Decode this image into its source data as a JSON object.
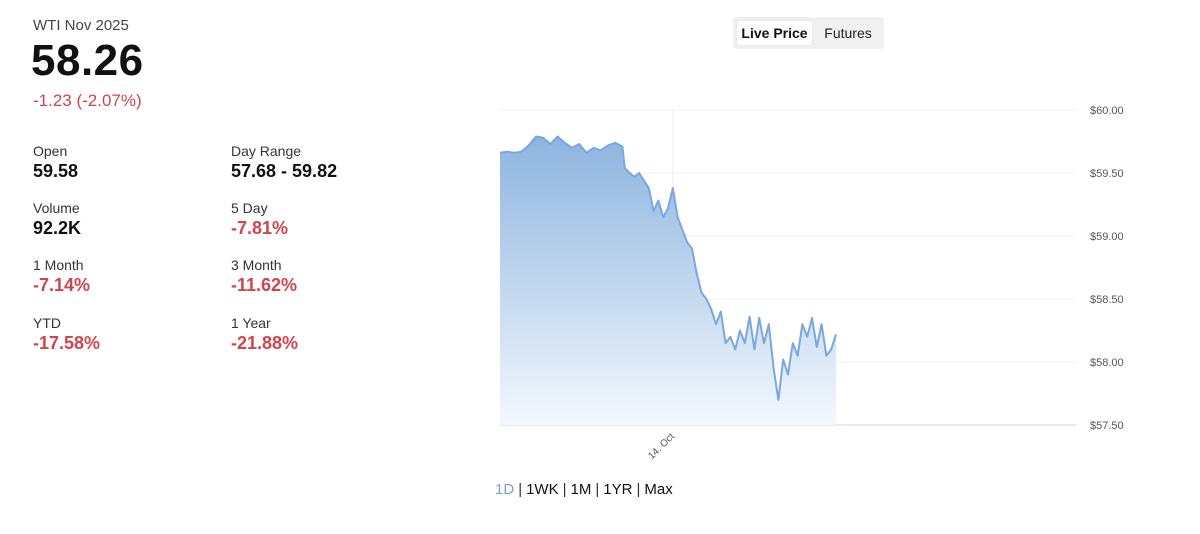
{
  "header": {
    "instrument": "WTI Nov 2025",
    "price": "58.26",
    "change": "-1.23 (-2.07%)"
  },
  "stats": [
    {
      "label": "Open",
      "value": "59.58",
      "negative": false
    },
    {
      "label": "Day Range",
      "value": "57.68 - 59.82",
      "negative": false
    },
    {
      "label": "Volume",
      "value": "92.2K",
      "negative": false
    },
    {
      "label": "5 Day",
      "value": "-7.81%",
      "negative": true
    },
    {
      "label": "1 Month",
      "value": "-7.14%",
      "negative": true
    },
    {
      "label": "3 Month",
      "value": "-11.62%",
      "negative": true
    },
    {
      "label": "YTD",
      "value": "-17.58%",
      "negative": true
    },
    {
      "label": "1 Year",
      "value": "-21.88%",
      "negative": true
    }
  ],
  "toggle": {
    "live_label": "Live Price",
    "futures_label": "Futures",
    "active": "live"
  },
  "ranges": [
    {
      "label": "1D",
      "active": true
    },
    {
      "label": "1WK",
      "active": false
    },
    {
      "label": "1M",
      "active": false
    },
    {
      "label": "1YR",
      "active": false
    },
    {
      "label": "Max",
      "active": false
    }
  ],
  "colors": {
    "negative": "#d0454c",
    "line": "#7aa7dd",
    "fill_top": "#8db4df",
    "fill_bottom": "#f3f8fd",
    "active_range": "#7ba4c9"
  },
  "chart_data": {
    "type": "area",
    "title": "",
    "xlabel": "",
    "ylabel": "",
    "ylim": [
      57.5,
      60.0
    ],
    "yticks": [
      60.0,
      59.5,
      59.0,
      58.5,
      58.0,
      57.5
    ],
    "ytick_labels": [
      "$60.00",
      "$59.50",
      "$59.00",
      "$58.50",
      "$58.00",
      "$57.50"
    ],
    "xlim_hours": [
      0,
      24
    ],
    "xticks": [
      {
        "t": 7.2,
        "label": "14. Oct"
      }
    ],
    "grid": true,
    "legend": "none",
    "series": [
      {
        "t": [
          0,
          0.3,
          0.6,
          0.9,
          1.2,
          1.5,
          1.8,
          2.1,
          2.4,
          2.7,
          3.0,
          3.3,
          3.6,
          3.9,
          4.2,
          4.5,
          4.8,
          5.1,
          5.2,
          5.4,
          5.6,
          5.8,
          6.0,
          6.2,
          6.4,
          6.6,
          6.8,
          7.0,
          7.2,
          7.4,
          7.6,
          7.8,
          8.0,
          8.2,
          8.4,
          8.6,
          8.8,
          9.0,
          9.2,
          9.4,
          9.6,
          9.8,
          10.0,
          10.2,
          10.4,
          10.6,
          10.8,
          11.0,
          11.2,
          11.4,
          11.6,
          11.8,
          12.0,
          12.2,
          12.4,
          12.6,
          12.8,
          13.0,
          13.2,
          13.4,
          13.6,
          13.8,
          14.0
        ],
        "values": [
          59.66,
          59.67,
          59.66,
          59.67,
          59.72,
          59.79,
          59.78,
          59.73,
          59.79,
          59.74,
          59.7,
          59.73,
          59.66,
          59.7,
          59.68,
          59.72,
          59.74,
          59.71,
          59.54,
          59.5,
          59.47,
          59.5,
          59.44,
          59.38,
          59.2,
          59.28,
          59.15,
          59.22,
          59.38,
          59.15,
          59.05,
          58.95,
          58.9,
          58.7,
          58.55,
          58.5,
          58.42,
          58.3,
          58.4,
          58.15,
          58.2,
          58.1,
          58.25,
          58.15,
          58.36,
          58.1,
          58.35,
          58.15,
          58.3,
          57.95,
          57.7,
          58.02,
          57.9,
          58.15,
          58.05,
          58.3,
          58.2,
          58.35,
          58.12,
          58.3,
          58.05,
          58.1,
          58.22
        ]
      }
    ]
  }
}
